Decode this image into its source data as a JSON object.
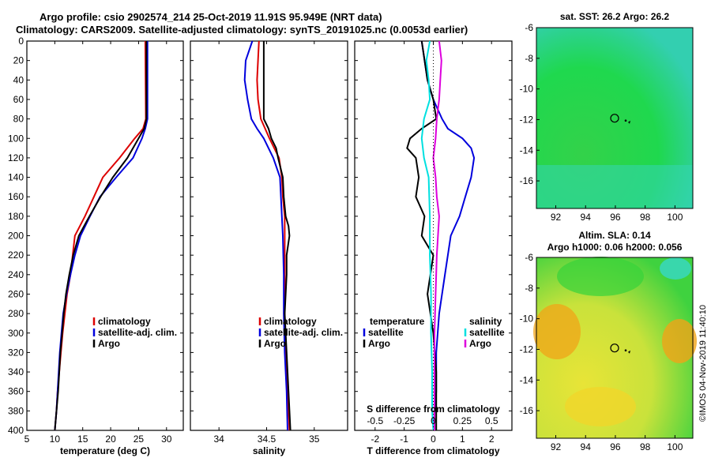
{
  "header": {
    "line1": "Argo profile: csio 2902574_214 25-Oct-2019 11.91S 95.949E (NRT data)",
    "line2": "Climatology: CARS2009. Satellite-adjusted climatology: synTS_20191025.nc (0.0053d earlier)"
  },
  "side_label": "©IMOS 04-Nov-2019 11:40:10",
  "colors": {
    "climatology": "#dd0000",
    "satellite": "#0000dd",
    "argo": "#000000",
    "sat_salinity": "#00e0e0",
    "argo_salinity": "#dd00dd"
  },
  "chart_data": [
    {
      "type": "line",
      "id": "temperature",
      "xlabel": "temperature (deg C)",
      "ylabel": "",
      "xlim": [
        5,
        33
      ],
      "ylim": [
        400,
        0
      ],
      "xticks": [
        5,
        10,
        15,
        20,
        25,
        30
      ],
      "yticks": [
        0,
        20,
        40,
        60,
        80,
        100,
        120,
        140,
        160,
        180,
        200,
        220,
        240,
        260,
        280,
        300,
        320,
        340,
        360,
        380,
        400
      ],
      "legend": [
        "climatology",
        "satellite-adj. clim.",
        "Argo"
      ],
      "series": [
        {
          "name": "climatology",
          "color": "#dd0000",
          "y": [
            0,
            80,
            90,
            100,
            120,
            140,
            160,
            180,
            200,
            220,
            240,
            260,
            280,
            300,
            320,
            340,
            360,
            380,
            400
          ],
          "x": [
            26.2,
            26.3,
            25.8,
            24.3,
            21.6,
            18.6,
            17.0,
            15.4,
            13.6,
            13.2,
            12.8,
            12.2,
            11.8,
            11.4,
            11.1,
            10.8,
            10.5,
            10.3,
            10.0
          ]
        },
        {
          "name": "satellite-adj. clim.",
          "color": "#0000dd",
          "y": [
            0,
            80,
            90,
            100,
            120,
            140,
            160,
            180,
            200,
            220,
            240,
            260,
            280,
            300,
            320,
            340,
            360,
            380,
            400
          ],
          "x": [
            26.6,
            26.6,
            26.2,
            25.6,
            24.0,
            21.0,
            18.1,
            16.3,
            14.6,
            13.6,
            12.8,
            12.1,
            11.5,
            11.2,
            10.9,
            10.7,
            10.5,
            10.3,
            10.0
          ]
        },
        {
          "name": "Argo",
          "color": "#000000",
          "y": [
            0,
            80,
            90,
            100,
            120,
            140,
            160,
            180,
            200,
            220,
            240,
            260,
            280,
            300,
            320,
            340,
            360,
            380,
            400
          ],
          "x": [
            26.4,
            26.4,
            26.0,
            25.0,
            23.0,
            20.4,
            18.2,
            16.2,
            14.3,
            13.3,
            12.6,
            12.0,
            11.6,
            11.3,
            11.0,
            10.8,
            10.6,
            10.3,
            10.0
          ]
        }
      ]
    },
    {
      "type": "line",
      "id": "salinity",
      "xlabel": "salinity",
      "ylabel": "",
      "xlim": [
        33.7,
        35.35
      ],
      "ylim": [
        400,
        0
      ],
      "xticks": [
        34,
        34.5,
        35
      ],
      "legend": [
        "climatology",
        "satellite-adj. clim.",
        "Argo"
      ],
      "series": [
        {
          "name": "climatology",
          "color": "#dd0000",
          "y": [
            0,
            20,
            40,
            60,
            80,
            100,
            120,
            140,
            160,
            180,
            200,
            240,
            280,
            320,
            360,
            400
          ],
          "x": [
            34.42,
            34.41,
            34.4,
            34.41,
            34.44,
            34.53,
            34.63,
            34.66,
            34.67,
            34.69,
            34.69,
            34.69,
            34.69,
            34.7,
            34.72,
            34.74
          ]
        },
        {
          "name": "satellite-adj. clim.",
          "color": "#0000dd",
          "y": [
            0,
            20,
            40,
            60,
            80,
            90,
            100,
            120,
            140,
            160,
            180,
            200,
            240,
            280,
            320,
            360,
            400
          ],
          "x": [
            34.35,
            34.28,
            34.27,
            34.3,
            34.34,
            34.4,
            34.47,
            34.57,
            34.64,
            34.65,
            34.66,
            34.67,
            34.68,
            34.68,
            34.69,
            34.71,
            34.72
          ]
        },
        {
          "name": "Argo",
          "color": "#000000",
          "y": [
            0,
            60,
            80,
            90,
            100,
            110,
            120,
            140,
            160,
            180,
            190,
            200,
            220,
            240,
            260,
            280,
            300,
            340,
            380,
            400
          ],
          "x": [
            34.47,
            34.47,
            34.47,
            34.52,
            34.55,
            34.6,
            34.62,
            34.67,
            34.68,
            34.7,
            34.73,
            34.74,
            34.71,
            34.71,
            34.7,
            34.69,
            34.7,
            34.72,
            34.74,
            34.75
          ]
        }
      ]
    },
    {
      "type": "line",
      "id": "difference",
      "xlabel": "T difference from climatology",
      "top_label": "S difference from climatology",
      "xlim": [
        -2.7,
        2.7
      ],
      "ylim": [
        400,
        0
      ],
      "xticks": [
        -2,
        -1,
        0,
        1,
        2
      ],
      "top_ticks": [
        "-0.5",
        "-0.25",
        "0",
        "0.25",
        "0.5"
      ],
      "legend_temperature": {
        "title": "temperature",
        "items": [
          "satellite",
          "Argo"
        ]
      },
      "legend_salinity": {
        "title": "salinity",
        "items": [
          "satellite",
          "Argo"
        ]
      },
      "series": [
        {
          "name": "T satellite",
          "color": "#0000dd",
          "y": [
            0,
            40,
            60,
            80,
            90,
            100,
            110,
            120,
            140,
            160,
            180,
            200,
            240,
            280,
            320,
            360,
            400
          ],
          "x": [
            -0.4,
            -0.2,
            0.0,
            0.3,
            0.5,
            1.0,
            1.3,
            1.4,
            1.3,
            1.1,
            0.9,
            0.6,
            0.4,
            0.2,
            0.1,
            0.1,
            0.0
          ]
        },
        {
          "name": "T Argo",
          "color": "#000000",
          "y": [
            0,
            40,
            60,
            80,
            90,
            100,
            110,
            120,
            140,
            160,
            180,
            200,
            220,
            260,
            280,
            300,
            340,
            380,
            400
          ],
          "x": [
            -0.4,
            -0.2,
            0.0,
            0.1,
            -0.4,
            -0.8,
            -0.9,
            -0.6,
            -0.5,
            -0.6,
            -0.3,
            -0.4,
            0.0,
            -0.2,
            -0.1,
            0.0,
            0.1,
            0.1,
            0.1
          ]
        },
        {
          "name": "S satellite",
          "color": "#00e0e0",
          "y": [
            0,
            20,
            40,
            60,
            80,
            100,
            120,
            140,
            180,
            220,
            260,
            300,
            340,
            380,
            400
          ],
          "x": [
            -0.03,
            -0.06,
            -0.04,
            -0.03,
            -0.08,
            -0.1,
            -0.08,
            -0.04,
            -0.03,
            -0.03,
            -0.02,
            -0.02,
            -0.01,
            -0.01,
            0.0
          ]
        },
        {
          "name": "S Argo",
          "color": "#dd00dd",
          "y": [
            0,
            20,
            40,
            60,
            80,
            100,
            120,
            140,
            160,
            180,
            200,
            220,
            260,
            300,
            340,
            380,
            400
          ],
          "x": [
            0.05,
            0.07,
            0.06,
            0.05,
            0.03,
            0.02,
            0.0,
            0.02,
            0.03,
            0.05,
            0.04,
            0.03,
            0.02,
            0.01,
            0.01,
            0.01,
            0.01
          ]
        }
      ]
    },
    {
      "type": "heatmap",
      "id": "sst_map",
      "title": "sat. SST: 26.2 Argo: 26.2",
      "xlim": [
        90.7,
        101.2
      ],
      "ylim": [
        -17.8,
        -6
      ],
      "xticks": [
        92,
        94,
        96,
        98,
        100
      ],
      "yticks": [
        -6,
        -8,
        -10,
        -12,
        -14,
        -16
      ],
      "argo_position": [
        95.95,
        -11.91
      ]
    },
    {
      "type": "heatmap",
      "id": "sla_map",
      "title": "Altim. SLA: 0.14",
      "subtitle": "Argo h1000: 0.06 h2000: 0.056",
      "xlim": [
        90.7,
        101.2
      ],
      "ylim": [
        -17.8,
        -6
      ],
      "xticks": [
        92,
        94,
        96,
        98,
        100
      ],
      "yticks": [
        -6,
        -8,
        -10,
        -12,
        -14,
        -16
      ],
      "argo_position": [
        95.95,
        -11.91
      ]
    }
  ]
}
